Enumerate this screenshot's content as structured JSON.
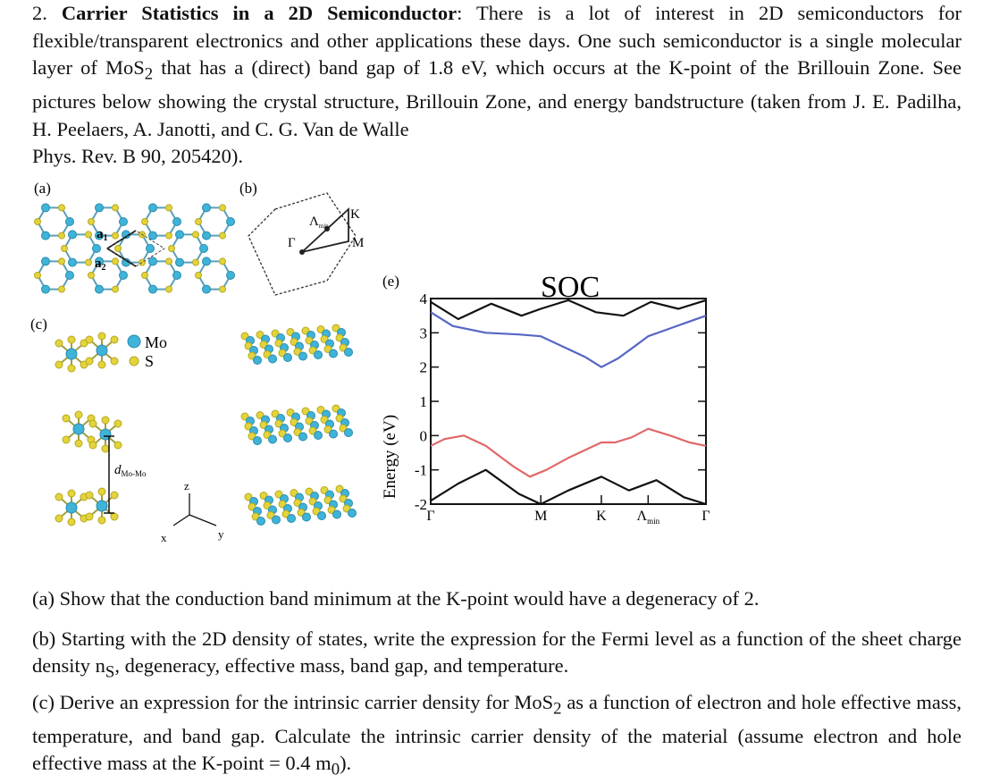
{
  "intro": {
    "number": "2.",
    "title": "Carrier Statistics in a 2D Semiconductor",
    "text_1": ": There is a lot of interest in 2D semiconductors for flexible/transparent electronics and other applications these days. One such semiconductor is a single molecular layer of MoS",
    "sub_2": "2",
    "text_2": " that has a (direct) band gap of 1.8 eV, which occurs at the K-point of the Brillouin Zone. See pictures below showing the crystal structure, Brillouin Zone, and energy bandstructure (taken from J. E. Padilha, H. Peelaers, A. Janotti, and C. G. Van de Walle",
    "citation_2": "Phys. Rev. B 90, 205420)."
  },
  "figure": {
    "panel_a": "(a)",
    "panel_b": "(b)",
    "panel_c": "(c)",
    "panel_e": "(e)",
    "a1": "a",
    "a1_sub": "1",
    "a2": "a",
    "a2_sub": "2",
    "legend_mo": "Mo",
    "legend_s": "S",
    "d_label": "d",
    "d_sub": "Mo-Mo",
    "axis_z": "z",
    "axis_x": "x",
    "axis_y": "y",
    "bz_gamma": "Γ",
    "bz_k": "K",
    "bz_m": "M",
    "bz_lambda": "Λ",
    "bz_lambda_sub": "min",
    "colors": {
      "mo": "#3fb3d8",
      "s": "#e2d43a",
      "valence": "#e06868",
      "conduction": "#5566c4"
    }
  },
  "chart_data": {
    "type": "line",
    "title": "SOC",
    "ylabel": "Energy (eV)",
    "ylim": [
      -2,
      4
    ],
    "y_ticks": [
      "-2",
      "-1",
      "0",
      "1",
      "2",
      "3",
      "4"
    ],
    "k_labels": [
      "Γ",
      "M",
      "K",
      "Λ",
      "Γ"
    ],
    "k_label_sub": "min",
    "k_positions": [
      0,
      0.4,
      0.62,
      0.79,
      1.0
    ],
    "series": [
      {
        "role": "conduction",
        "x": [
          0,
          0.08,
          0.2,
          0.32,
          0.4,
          0.48,
          0.56,
          0.62,
          0.68,
          0.74,
          0.79,
          0.86,
          0.93,
          1.0
        ],
        "y": [
          3.6,
          3.2,
          3.0,
          2.95,
          2.9,
          2.6,
          2.3,
          2.0,
          2.25,
          2.6,
          2.9,
          3.1,
          3.3,
          3.5
        ]
      },
      {
        "role": "conduction-2",
        "x": [
          0,
          0.1,
          0.22,
          0.33,
          0.4,
          0.5,
          0.6,
          0.7,
          0.8,
          0.9,
          1.0
        ],
        "y": [
          3.9,
          3.4,
          3.85,
          3.5,
          3.7,
          3.95,
          3.6,
          3.5,
          3.9,
          3.7,
          3.95
        ]
      },
      {
        "role": "valence",
        "x": [
          0,
          0.05,
          0.12,
          0.2,
          0.3,
          0.36,
          0.42,
          0.5,
          0.58,
          0.62,
          0.67,
          0.73,
          0.79,
          0.87,
          0.94,
          1.0
        ],
        "y": [
          -0.3,
          -0.1,
          0.0,
          -0.3,
          -0.9,
          -1.2,
          -1.0,
          -0.65,
          -0.35,
          -0.2,
          -0.2,
          -0.05,
          0.2,
          0.0,
          -0.2,
          -0.3
        ]
      },
      {
        "role": "valence-low",
        "x": [
          0,
          0.1,
          0.2,
          0.32,
          0.4,
          0.5,
          0.62,
          0.72,
          0.82,
          0.92,
          1.0
        ],
        "y": [
          -1.9,
          -1.4,
          -1.0,
          -1.7,
          -2.0,
          -1.6,
          -1.2,
          -1.6,
          -1.3,
          -1.8,
          -2.0
        ]
      }
    ]
  },
  "questions": {
    "a": "(a) Show that the conduction band minimum at the K-point would have a degeneracy of 2.",
    "b_1": "(b) Starting with the 2D density of states, write the expression for the Fermi level as a function of the sheet charge density n",
    "b_sub": "S",
    "b_2": ", degeneracy, effective mass, band gap, and temperature.",
    "c_1": "(c) Derive an expression for the intrinsic carrier density for MoS",
    "c_sub": "2",
    "c_2": " as a function of electron and hole effective mass, temperature, and band gap. Calculate the intrinsic carrier density of the material (assume electron and hole effective mass at the K-point = 0.4 m",
    "c_sub2": "0",
    "c_3": ")."
  }
}
